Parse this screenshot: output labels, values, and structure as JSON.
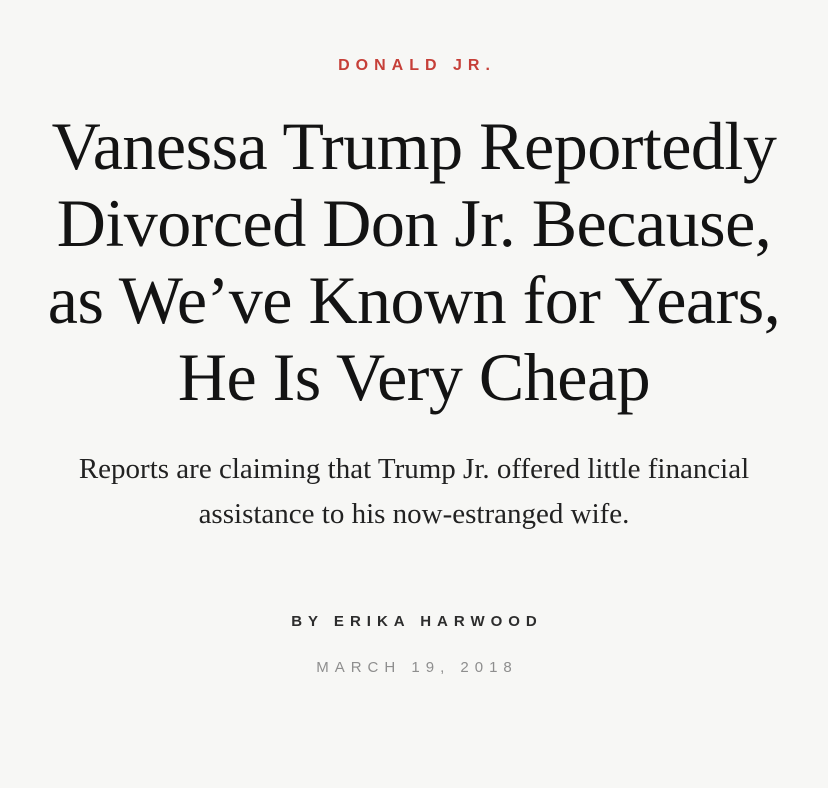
{
  "page": {
    "background_color": "#f7f7f5"
  },
  "category": {
    "label": "DONALD JR.",
    "color": "#c63f38"
  },
  "headline": {
    "text": "Vanessa Trump Reportedly Divorced Don Jr. Because, as We’ve Known for Years, He Is Very Cheap",
    "lines": [
      "Vanessa Trump",
      "Reportedly Divorced Don",
      "Jr. Because, as We’ve",
      "Known for Years, He Is",
      "Very Cheap"
    ],
    "color": "#131313"
  },
  "subtitle": {
    "text": "Reports are claiming that Trump Jr. offered little financial assistance to his now-estranged wife.",
    "color": "#222222"
  },
  "byline": {
    "label": "BY ERIKA HARWOOD",
    "prefix": "BY",
    "author": "ERIKA HARWOOD"
  },
  "pub_date": {
    "label": "MARCH 19, 2018",
    "color": "#8e8e8e"
  }
}
